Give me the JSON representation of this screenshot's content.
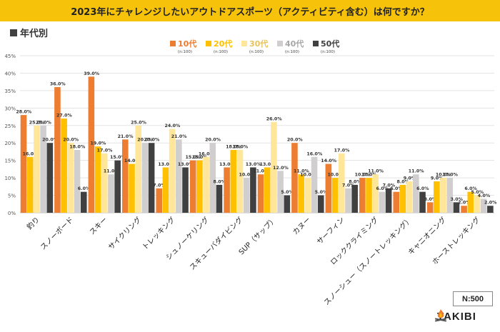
{
  "header": {
    "title": "2023年にチャレンジしたいアウトドアスポーツ（アクティビティ含む）は何ですか？",
    "section_label": "年代別"
  },
  "badge": {
    "sample": "N:500"
  },
  "logo": {
    "text": "TAKIBI",
    "icon": "campfire-icon"
  },
  "colors": {
    "title_bar": "#F7C30A",
    "s10": "#ED7D31",
    "s20": "#FFC000",
    "s30": "#FFE699",
    "s40": "#D0CECE",
    "s50": "#404040"
  },
  "chart_data": {
    "type": "bar",
    "ylim": [
      0,
      45
    ],
    "yticks": [
      "0%",
      "5%",
      "10%",
      "15%",
      "20%",
      "25%",
      "30%",
      "35%",
      "40%",
      "45%"
    ],
    "grid": true,
    "legend_position": "top",
    "categories": [
      "釣り",
      "スノーボード",
      "スキー",
      "サイクリング",
      "トレッキング",
      "シュノーケリング",
      "スキューバダイビング",
      "SUP（サップ）",
      "カヌー",
      "サーフィン",
      "ロッククライミング",
      "スノーシュー（スノートレッキング）",
      "キャニオニング",
      "ホーストレッキング"
    ],
    "series": [
      {
        "name": "10代",
        "sub": "(n:100)",
        "color": "#ED7D31",
        "values": [
          28,
          36,
          39,
          21,
          7,
          15,
          13,
          11,
          20,
          14,
          10,
          6,
          3,
          2
        ]
      },
      {
        "name": "20代",
        "sub": "(n:100)",
        "color": "#FFC000",
        "values": [
          16,
          27,
          19,
          14,
          13,
          15,
          18,
          13,
          11,
          10,
          10,
          8,
          9,
          6
        ]
      },
      {
        "name": "30代",
        "sub": "(n:100)",
        "color": "#FFE699",
        "values": [
          25,
          20,
          17,
          25,
          24,
          16,
          18,
          26,
          10,
          17,
          11,
          9,
          10,
          5
        ]
      },
      {
        "name": "40代",
        "sub": "(n:100)",
        "color": "#D0CECE",
        "values": [
          25,
          18,
          11,
          20,
          21,
          20,
          10,
          12,
          16,
          7,
          6,
          11,
          10,
          4
        ]
      },
      {
        "name": "50代",
        "sub": "(n:100)",
        "color": "#404040",
        "values": [
          20,
          6,
          15,
          20,
          13,
          8,
          13,
          5,
          5,
          8,
          7,
          6,
          3,
          2
        ]
      }
    ]
  }
}
